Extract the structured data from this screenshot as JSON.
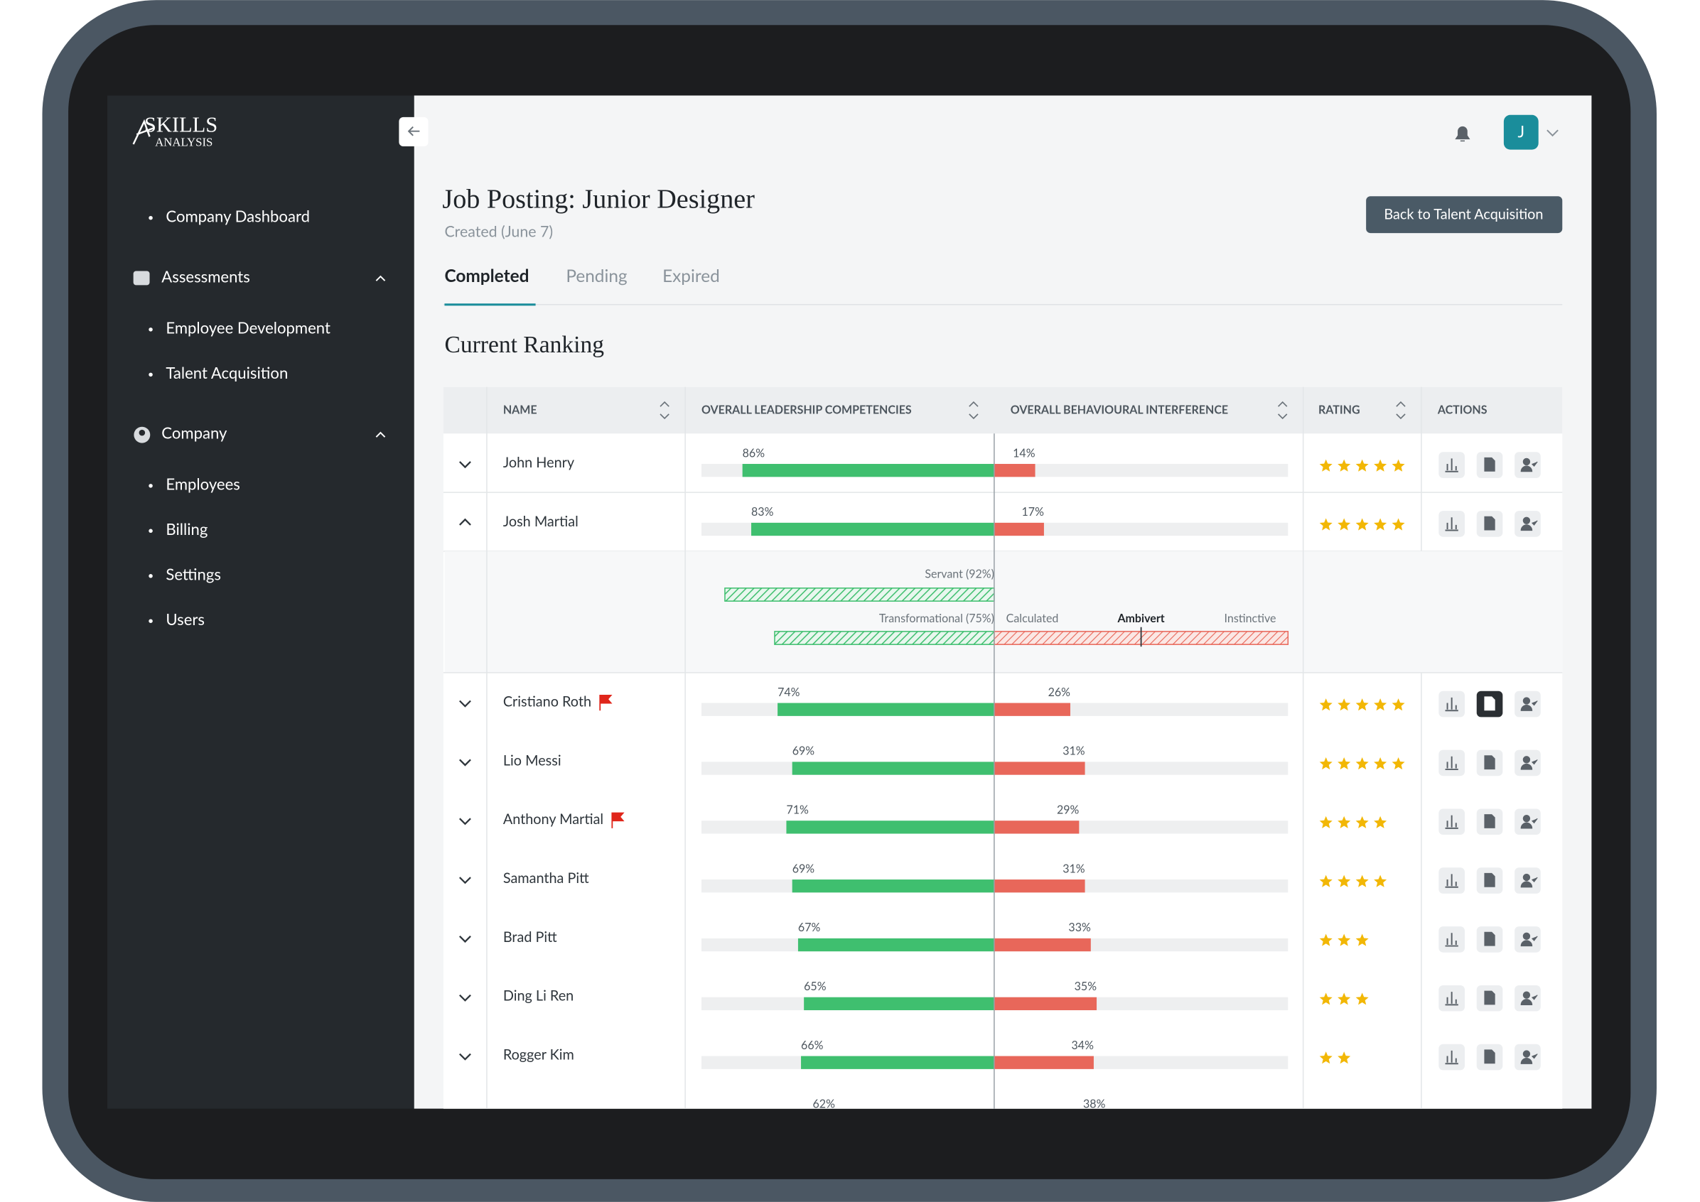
{
  "sidebar": {
    "logo": {
      "line1": "SKILLS",
      "line2": "ANALYSIS"
    },
    "items": [
      {
        "label": "Company Dashboard"
      },
      {
        "label": "Assessments",
        "children": [
          "Employee Development",
          "Talent Acquisition"
        ]
      },
      {
        "label": "Company",
        "children": [
          "Employees",
          "Billing",
          "Settings",
          "Users"
        ]
      }
    ]
  },
  "header": {
    "avatar": "J",
    "title": "Job Posting: Junior Designer",
    "subtitle": "Created (June 7)",
    "button": "Back to Talent Acquisition"
  },
  "tabs": [
    "Completed",
    "Pending",
    "Expired"
  ],
  "section_title": "Current Ranking",
  "table": {
    "columns": [
      "NAME",
      "OVERALL LEADERSHIP COMPETENCIES",
      "OVERALL BEHAVIOURAL INTERFERENCE",
      "RATING",
      "ACTIONS"
    ],
    "rows": [
      {
        "name": "John Henry",
        "leadership": {
          "value": 86,
          "label": "86%"
        },
        "behaviour": {
          "value": 14,
          "label": "14%"
        },
        "rating": 5
      },
      {
        "name": "Josh Martial",
        "leadership": {
          "value": 83,
          "label": "83%"
        },
        "behaviour": {
          "value": 17,
          "label": "17%"
        },
        "rating": 5,
        "expanded": true,
        "details": {
          "servant": {
            "value": 92,
            "label": "Servant (92%)"
          },
          "transformational": {
            "value": 75,
            "label": "Transformational (75%)"
          },
          "scale": [
            "Calculated",
            "Ambivert",
            "Instinctive"
          ]
        }
      },
      {
        "name": "Cristiano Roth",
        "flag": true,
        "leadership": {
          "value": 74,
          "label": "74%"
        },
        "behaviour": {
          "value": 26,
          "label": "26%"
        },
        "rating": 5
      },
      {
        "name": "Lio Messi",
        "leadership": {
          "value": 69,
          "label": "69%"
        },
        "behaviour": {
          "value": 31,
          "label": "31%"
        },
        "rating": 5
      },
      {
        "name": "Anthony Martial",
        "flag": true,
        "leadership": {
          "value": 71,
          "label": "71%"
        },
        "behaviour": {
          "value": 29,
          "label": "29%"
        },
        "rating": 4
      },
      {
        "name": "Samantha Pitt",
        "leadership": {
          "value": 69,
          "label": "69%"
        },
        "behaviour": {
          "value": 31,
          "label": "31%"
        },
        "rating": 4
      },
      {
        "name": "Brad Pitt",
        "leadership": {
          "value": 67,
          "label": "67%"
        },
        "behaviour": {
          "value": 33,
          "label": "33%"
        },
        "rating": 3
      },
      {
        "name": "Ding Li Ren",
        "leadership": {
          "value": 65,
          "label": "65%"
        },
        "behaviour": {
          "value": 35,
          "label": "35%"
        },
        "rating": 3
      },
      {
        "name": "Rogger Kim",
        "leadership": {
          "value": 66,
          "label": "66%"
        },
        "behaviour": {
          "value": 34,
          "label": "34%"
        },
        "rating": 2
      },
      {
        "leadership": {
          "value": 62,
          "label": "62%"
        },
        "behaviour": {
          "value": 38,
          "label": "38%"
        }
      }
    ]
  }
}
